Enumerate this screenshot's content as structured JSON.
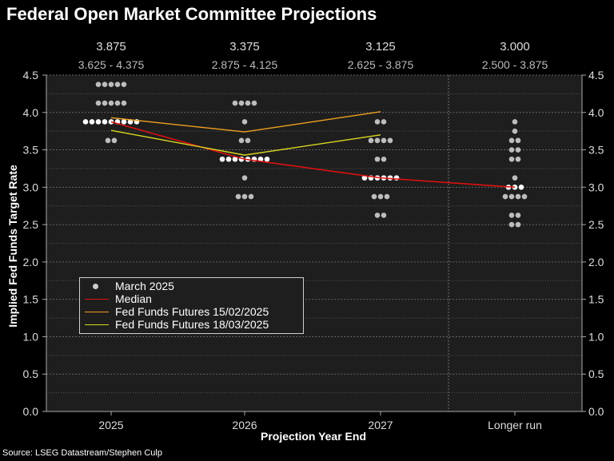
{
  "title": "Federal Open Market Committee Projections",
  "source": "Source: LSEG Datastream/Stephen Culp",
  "chart_data": {
    "type": "scatter",
    "title": "Federal Open Market Committee Projections",
    "xlabel": "Projection Year End",
    "ylabel": "Implied Fed Funds Target Rate",
    "ylim": [
      0,
      4.5
    ],
    "yticks": [
      "0.0",
      "0.5",
      "1.0",
      "1.5",
      "2.0",
      "2.5",
      "3.0",
      "3.5",
      "4.0",
      "4.5"
    ],
    "categories": [
      "2025",
      "2026",
      "2027",
      "Longer run"
    ],
    "medians_text": [
      "3.875",
      "3.375",
      "3.125",
      "3.000"
    ],
    "ranges_text": [
      "3.625 - 4.375",
      "2.875 - 4.125",
      "2.625 - 3.875",
      "2.500 - 3.875"
    ],
    "dots": [
      [
        [
          4.375,
          5
        ],
        [
          4.125,
          5
        ],
        [
          3.875,
          9
        ],
        [
          3.625,
          2
        ]
      ],
      [
        [
          4.125,
          4
        ],
        [
          3.875,
          1
        ],
        [
          3.625,
          2
        ],
        [
          3.375,
          8
        ],
        [
          3.125,
          1
        ],
        [
          2.875,
          3
        ]
      ],
      [
        [
          3.875,
          2
        ],
        [
          3.625,
          4
        ],
        [
          3.375,
          2
        ],
        [
          3.125,
          6
        ],
        [
          2.875,
          3
        ],
        [
          2.625,
          2
        ]
      ],
      [
        [
          3.875,
          1
        ],
        [
          3.75,
          1
        ],
        [
          3.625,
          2
        ],
        [
          3.5,
          2
        ],
        [
          3.375,
          2
        ],
        [
          3.125,
          1
        ],
        [
          3.0,
          3
        ],
        [
          2.875,
          4
        ],
        [
          2.625,
          2
        ],
        [
          2.5,
          2
        ]
      ]
    ],
    "series": [
      {
        "name": "Median",
        "values": [
          3.875,
          3.375,
          3.125,
          3.0
        ],
        "color": "#e01010"
      },
      {
        "name": "Fed Funds Futures 15/02/2025",
        "values": [
          3.93,
          3.74,
          4.01,
          null
        ],
        "color": "#f0a020"
      },
      {
        "name": "Fed Funds Futures 18/03/2025",
        "values": [
          3.76,
          3.43,
          3.7,
          null
        ],
        "color": "#d8d820"
      }
    ],
    "legend": {
      "position": "bottom-left",
      "items": [
        {
          "label": "March 2025",
          "kind": "dot",
          "color": "#cccccc"
        },
        {
          "label": "Median",
          "kind": "line",
          "color": "#e01010"
        },
        {
          "label": "Fed Funds Futures 15/02/2025",
          "kind": "line",
          "color": "#f0a020"
        },
        {
          "label": "Fed Funds Futures 18/03/2025",
          "kind": "line",
          "color": "#d8d820"
        }
      ]
    },
    "grid": true
  }
}
